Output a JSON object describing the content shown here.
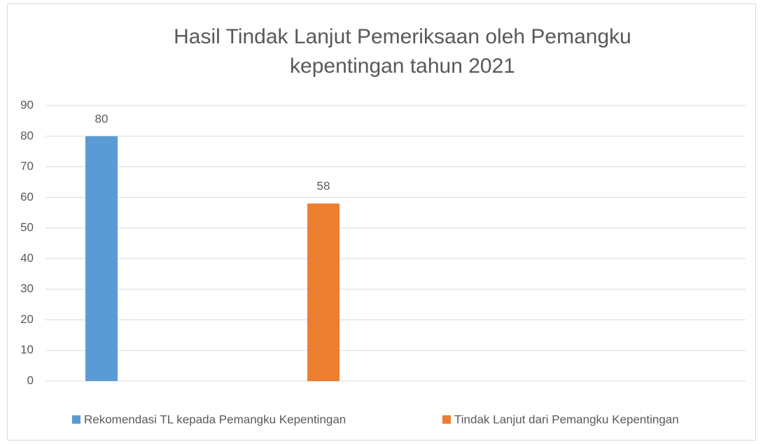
{
  "chart_data": {
    "type": "bar",
    "title": "Hasil Tindak Lanjut Pemeriksaan oleh Pemangku kepentingan tahun 2021",
    "categories": [
      null
    ],
    "series": [
      {
        "name": "Rekomendasi TL kepada Pemangku Kepentingan",
        "color": "#5b9bd5",
        "values": [
          80
        ]
      },
      {
        "name": "Tindak Lanjut dari Pemangku Kepentingan",
        "color": "#ed7d31",
        "values": [
          58
        ]
      }
    ],
    "ylim": [
      0,
      90
    ],
    "yticks": [
      0,
      10,
      20,
      30,
      40,
      50,
      60,
      70,
      80,
      90
    ],
    "grid": true,
    "legend": "bottom"
  }
}
